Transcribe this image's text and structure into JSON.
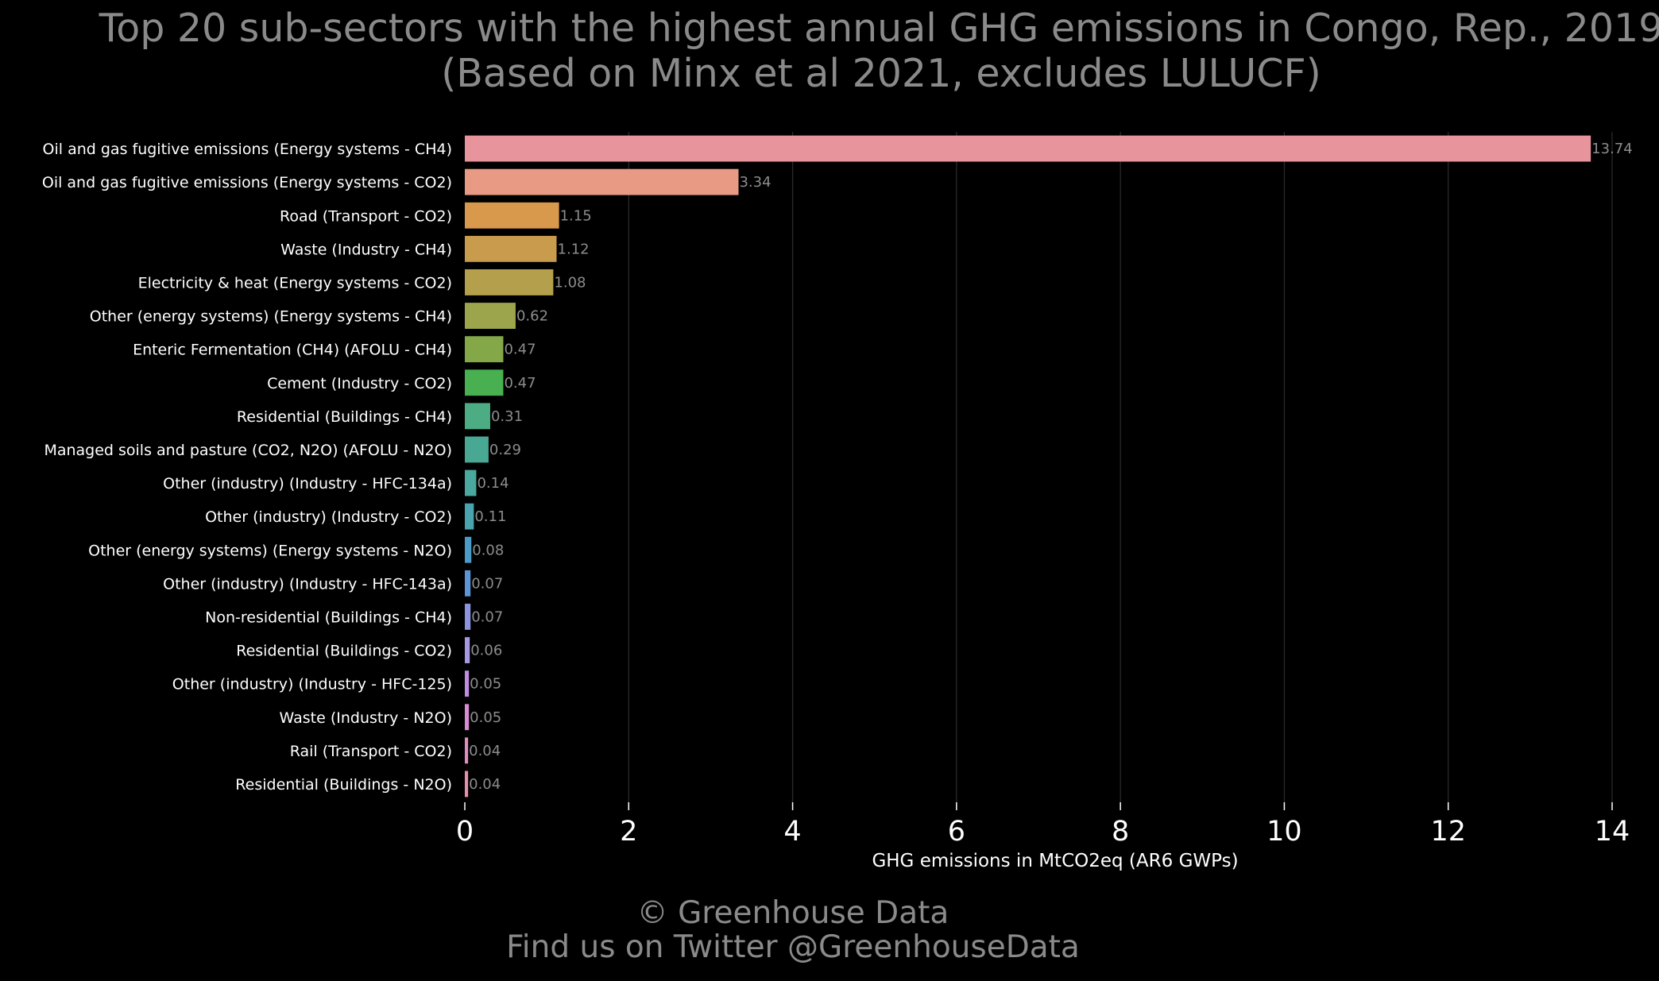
{
  "chart_data": {
    "type": "bar",
    "orientation": "horizontal",
    "title": [
      "Top 20 sub-sectors with the highest annual GHG emissions in Congo, Rep., 2019",
      "(Based on Minx et al 2021, excludes LULUCF)"
    ],
    "xlabel": "GHG emissions in MtCO2eq (AR6 GWPs)",
    "ylabel": "",
    "xlim": [
      0,
      14
    ],
    "xticks": [
      0,
      2,
      4,
      6,
      8,
      10,
      12,
      14
    ],
    "grid": "vertical",
    "categories": [
      "Oil and gas fugitive emissions (Energy systems - CH4)",
      "Oil and gas fugitive emissions (Energy systems - CO2)",
      "Road (Transport - CO2)",
      "Waste (Industry - CH4)",
      "Electricity & heat (Energy systems - CO2)",
      "Other (energy systems) (Energy systems - CH4)",
      "Enteric Fermentation (CH4) (AFOLU - CH4)",
      "Cement (Industry - CO2)",
      "Residential (Buildings - CH4)",
      "Managed soils and pasture (CO2, N2O) (AFOLU - N2O)",
      "Other (industry) (Industry - HFC-134a)",
      "Other (industry) (Industry - CO2)",
      "Other (energy systems) (Energy systems - N2O)",
      "Other (industry) (Industry - HFC-143a)",
      "Non-residential (Buildings - CH4)",
      "Residential (Buildings - CO2)",
      "Other (industry) (Industry - HFC-125)",
      "Waste (Industry - N2O)",
      "Rail  (Transport - CO2)",
      "Residential (Buildings - N2O)"
    ],
    "values": [
      13.74,
      3.34,
      1.15,
      1.12,
      1.08,
      0.62,
      0.47,
      0.47,
      0.31,
      0.29,
      0.14,
      0.11,
      0.08,
      0.07,
      0.07,
      0.06,
      0.05,
      0.05,
      0.04,
      0.04
    ],
    "value_labels": [
      "13.74",
      "3.34",
      "1.15",
      "1.12",
      "1.08",
      "0.62",
      "0.47",
      "0.47",
      "0.31",
      "0.29",
      "0.14",
      "0.11",
      "0.08",
      "0.07",
      "0.07",
      "0.06",
      "0.05",
      "0.05",
      "0.04",
      "0.04"
    ],
    "colors": [
      "#e8949c",
      "#e89a84",
      "#d8994c",
      "#c89c4c",
      "#b4a04c",
      "#9ca44c",
      "#84a848",
      "#48b050",
      "#4cac84",
      "#48a894",
      "#4aa89e",
      "#4aa4b0",
      "#4a9cc6",
      "#5c94d6",
      "#8c94e0",
      "#a898e4",
      "#c08ce0",
      "#d88cd4",
      "#e48cc0",
      "#e890aa"
    ],
    "background": "#000000"
  },
  "footer": {
    "line1": "© Greenhouse Data",
    "line2": "Find us on Twitter @GreenhouseData"
  }
}
